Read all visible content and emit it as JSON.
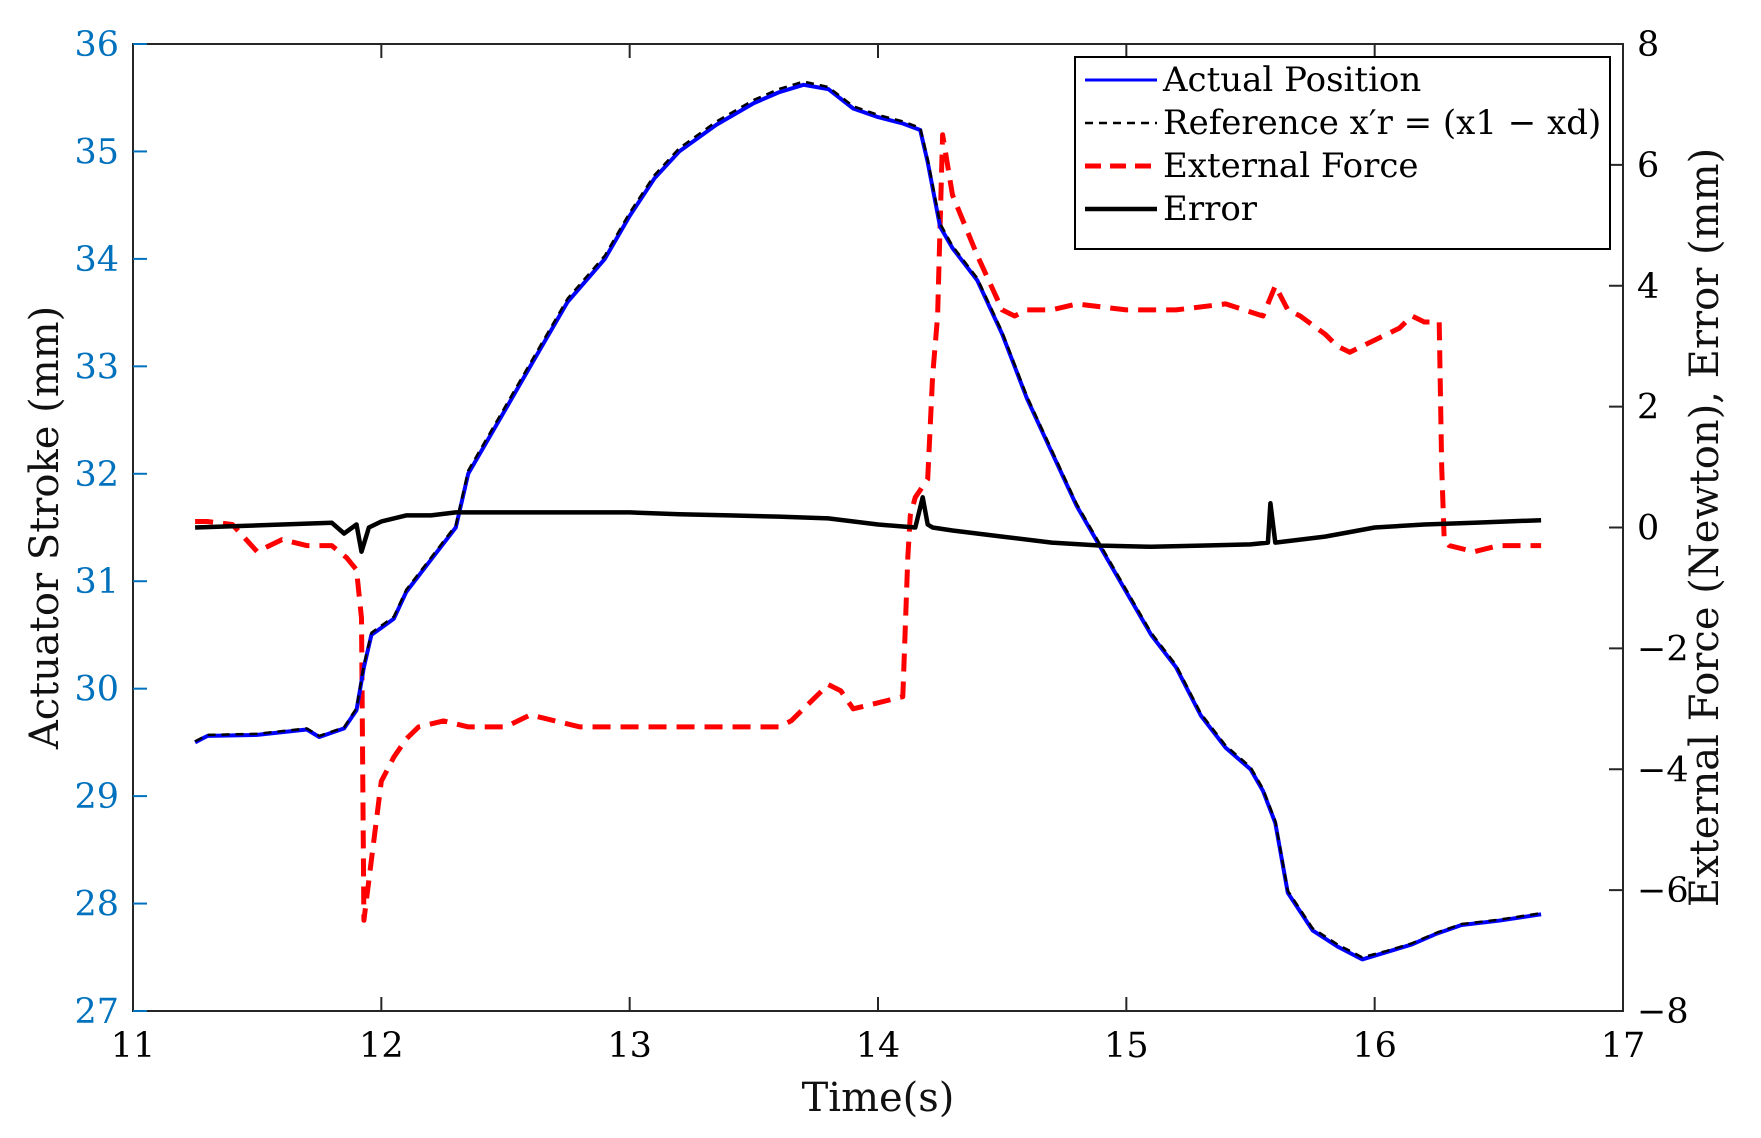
{
  "chart_data": {
    "type": "line",
    "xlabel": "Time(s)",
    "ylabel_left": "Actuator Stroke (mm)",
    "ylabel_right": "External Force (Newton), Error (mm)",
    "xlim": [
      11,
      17
    ],
    "ylim_left": [
      27,
      36
    ],
    "ylim_right": [
      -8,
      8
    ],
    "xticks": [
      11,
      12,
      13,
      14,
      15,
      16,
      17
    ],
    "xtick_labels": [
      "11",
      "12",
      "13",
      "14",
      "15",
      "16",
      "17"
    ],
    "yticks_left": [
      27,
      28,
      29,
      30,
      31,
      32,
      33,
      34,
      35,
      36
    ],
    "ytick_labels_left": [
      "27",
      "28",
      "29",
      "30",
      "31",
      "32",
      "33",
      "34",
      "35",
      "36"
    ],
    "yticks_right": [
      -8,
      -6,
      -4,
      -2,
      0,
      2,
      4,
      6,
      8
    ],
    "ytick_labels_right": [
      "−8",
      "−6",
      "−4",
      "−2",
      "0",
      "2",
      "4",
      "6",
      "8"
    ],
    "legend_position": "top-right",
    "grid": false,
    "series": [
      {
        "name": "Actual Position",
        "axis": "left",
        "color": "#0000FF",
        "style": "solid",
        "x": [
          11.25,
          11.3,
          11.5,
          11.7,
          11.75,
          11.85,
          11.9,
          11.93,
          11.96,
          12.05,
          12.1,
          12.2,
          12.3,
          12.35,
          12.45,
          12.6,
          12.75,
          12.9,
          13.0,
          13.1,
          13.2,
          13.35,
          13.5,
          13.6,
          13.7,
          13.8,
          13.9,
          14.0,
          14.1,
          14.17,
          14.2,
          14.25,
          14.3,
          14.4,
          14.5,
          14.6,
          14.7,
          14.8,
          14.9,
          15.0,
          15.1,
          15.2,
          15.3,
          15.4,
          15.5,
          15.55,
          15.6,
          15.65,
          15.75,
          15.85,
          15.95,
          16.05,
          16.15,
          16.25,
          16.35,
          16.5,
          16.67
        ],
        "values": [
          29.5,
          29.56,
          29.57,
          29.62,
          29.55,
          29.63,
          29.8,
          30.2,
          30.5,
          30.65,
          30.9,
          31.2,
          31.5,
          32.0,
          32.4,
          33.0,
          33.6,
          34.0,
          34.4,
          34.75,
          35.0,
          35.25,
          35.45,
          35.55,
          35.62,
          35.58,
          35.4,
          35.32,
          35.26,
          35.2,
          34.9,
          34.3,
          34.1,
          33.8,
          33.3,
          32.7,
          32.2,
          31.7,
          31.3,
          30.9,
          30.5,
          30.2,
          29.75,
          29.45,
          29.25,
          29.05,
          28.75,
          28.1,
          27.75,
          27.6,
          27.48,
          27.55,
          27.62,
          27.72,
          27.8,
          27.84,
          27.9
        ]
      },
      {
        "name": "Reference x′r = (x1 − xd)",
        "axis": "left",
        "color": "#000000",
        "style": "dashed",
        "x": [
          11.25,
          11.3,
          11.5,
          11.7,
          11.75,
          11.85,
          11.9,
          11.93,
          11.96,
          12.05,
          12.1,
          12.2,
          12.3,
          12.35,
          12.45,
          12.6,
          12.75,
          12.9,
          13.0,
          13.1,
          13.2,
          13.35,
          13.5,
          13.6,
          13.7,
          13.8,
          13.9,
          14.0,
          14.1,
          14.17,
          14.2,
          14.25,
          14.3,
          14.4,
          14.5,
          14.6,
          14.7,
          14.8,
          14.9,
          15.0,
          15.1,
          15.2,
          15.3,
          15.4,
          15.5,
          15.55,
          15.6,
          15.65,
          15.75,
          15.85,
          15.95,
          16.05,
          16.15,
          16.25,
          16.35,
          16.5,
          16.67
        ],
        "values": [
          29.51,
          29.57,
          29.58,
          29.63,
          29.56,
          29.64,
          29.82,
          30.22,
          30.52,
          30.67,
          30.92,
          31.22,
          31.52,
          32.03,
          32.43,
          33.03,
          33.63,
          34.03,
          34.43,
          34.78,
          35.03,
          35.28,
          35.48,
          35.58,
          35.65,
          35.6,
          35.42,
          35.34,
          35.28,
          35.22,
          34.93,
          34.33,
          34.12,
          33.82,
          33.32,
          32.72,
          32.22,
          31.72,
          31.32,
          30.92,
          30.52,
          30.22,
          29.77,
          29.47,
          29.27,
          29.07,
          28.77,
          28.12,
          27.77,
          27.62,
          27.5,
          27.56,
          27.63,
          27.73,
          27.81,
          27.85,
          27.91
        ]
      },
      {
        "name": "External Force",
        "axis": "right",
        "color": "#FF0000",
        "style": "dashed",
        "x": [
          11.25,
          11.3,
          11.4,
          11.5,
          11.6,
          11.7,
          11.8,
          11.86,
          11.9,
          11.92,
          11.93,
          11.96,
          12.0,
          12.05,
          12.1,
          12.15,
          12.25,
          12.35,
          12.5,
          12.6,
          12.7,
          12.8,
          12.9,
          13.0,
          13.2,
          13.4,
          13.6,
          13.65,
          13.7,
          13.75,
          13.8,
          13.85,
          13.9,
          14.0,
          14.1,
          14.12,
          14.13,
          14.15,
          14.2,
          14.22,
          14.24,
          14.26,
          14.3,
          14.4,
          14.5,
          14.55,
          14.6,
          14.7,
          14.8,
          15.0,
          15.2,
          15.4,
          15.55,
          15.6,
          15.65,
          15.7,
          15.8,
          15.85,
          15.9,
          16.0,
          16.1,
          16.15,
          16.2,
          16.26,
          16.27,
          16.28,
          16.3,
          16.4,
          16.5,
          16.67
        ],
        "values": [
          0.1,
          0.1,
          0.05,
          -0.4,
          -0.2,
          -0.3,
          -0.3,
          -0.5,
          -0.7,
          -1.5,
          -6.5,
          -5.5,
          -4.2,
          -3.8,
          -3.5,
          -3.3,
          -3.2,
          -3.3,
          -3.3,
          -3.1,
          -3.2,
          -3.3,
          -3.3,
          -3.3,
          -3.3,
          -3.3,
          -3.3,
          -3.2,
          -3.0,
          -2.8,
          -2.6,
          -2.7,
          -3.0,
          -2.9,
          -2.8,
          -0.5,
          0.2,
          0.5,
          0.8,
          2.5,
          3.5,
          6.5,
          5.5,
          4.5,
          3.6,
          3.5,
          3.6,
          3.6,
          3.7,
          3.6,
          3.6,
          3.7,
          3.5,
          4.0,
          3.6,
          3.5,
          3.2,
          3.0,
          2.9,
          3.1,
          3.3,
          3.5,
          3.4,
          3.4,
          1.0,
          -0.2,
          -0.3,
          -0.4,
          -0.3,
          -0.3
        ]
      },
      {
        "name": "Error",
        "axis": "right",
        "color": "#000000",
        "style": "solid",
        "x": [
          11.25,
          11.4,
          11.6,
          11.8,
          11.85,
          11.9,
          11.92,
          11.95,
          12.0,
          12.1,
          12.2,
          12.3,
          12.4,
          12.6,
          12.8,
          13.0,
          13.2,
          13.4,
          13.6,
          13.8,
          14.0,
          14.15,
          14.18,
          14.2,
          14.22,
          14.3,
          14.5,
          14.7,
          14.9,
          15.1,
          15.3,
          15.5,
          15.57,
          15.58,
          15.6,
          15.7,
          15.8,
          16.0,
          16.2,
          16.4,
          16.67
        ],
        "values": [
          0.0,
          0.02,
          0.05,
          0.08,
          -0.1,
          0.05,
          -0.4,
          0.0,
          0.1,
          0.2,
          0.2,
          0.25,
          0.25,
          0.25,
          0.25,
          0.25,
          0.22,
          0.2,
          0.18,
          0.15,
          0.05,
          0.0,
          0.5,
          0.05,
          0.0,
          -0.05,
          -0.15,
          -0.25,
          -0.3,
          -0.32,
          -0.3,
          -0.28,
          -0.25,
          0.4,
          -0.25,
          -0.2,
          -0.15,
          0.0,
          0.05,
          0.08,
          0.12
        ]
      }
    ]
  }
}
